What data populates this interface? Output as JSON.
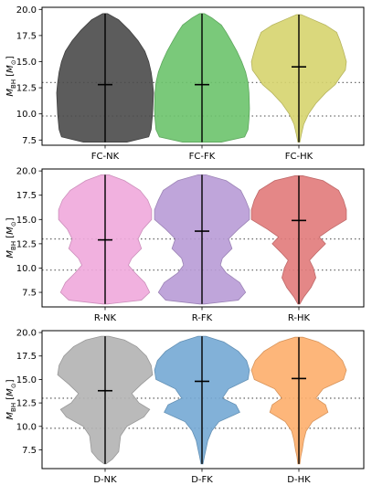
{
  "chart_data": [
    {
      "type": "violin",
      "ylabel": "M_BH [M_⊙]",
      "ylim": [
        7.0,
        20.2
      ],
      "yticks": [
        "7.5",
        "10.0",
        "12.5",
        "15.0",
        "17.5",
        "20.0"
      ],
      "reference_lines": [
        13.0,
        9.8
      ],
      "categories": [
        "FC-NK",
        "FC-FK",
        "FC-HK"
      ],
      "series": [
        {
          "color": "#4a4a4a",
          "min": 7.3,
          "max": 19.6,
          "median": 12.8,
          "density": [
            [
              7.3,
              0.45
            ],
            [
              7.8,
              0.9
            ],
            [
              8.5,
              0.95
            ],
            [
              9.0,
              0.96
            ],
            [
              10.0,
              0.98
            ],
            [
              11.0,
              0.99
            ],
            [
              12.0,
              1.0
            ],
            [
              13.0,
              0.98
            ],
            [
              14.0,
              0.95
            ],
            [
              15.0,
              0.9
            ],
            [
              16.0,
              0.82
            ],
            [
              17.0,
              0.68
            ],
            [
              18.0,
              0.5
            ],
            [
              19.0,
              0.28
            ],
            [
              19.6,
              0.05
            ]
          ]
        },
        {
          "color": "#6cc36c",
          "min": 7.3,
          "max": 19.6,
          "median": 12.8,
          "density": [
            [
              7.3,
              0.4
            ],
            [
              7.8,
              0.88
            ],
            [
              8.5,
              0.95
            ],
            [
              9.5,
              0.97
            ],
            [
              10.5,
              0.98
            ],
            [
              12.0,
              0.97
            ],
            [
              13.0,
              0.95
            ],
            [
              14.0,
              0.9
            ],
            [
              15.0,
              0.82
            ],
            [
              16.0,
              0.72
            ],
            [
              17.0,
              0.6
            ],
            [
              17.8,
              0.5
            ],
            [
              18.5,
              0.4
            ],
            [
              19.2,
              0.2
            ],
            [
              19.6,
              0.05
            ]
          ]
        },
        {
          "color": "#d6d46e",
          "min": 7.3,
          "max": 19.5,
          "median": 14.5,
          "density": [
            [
              7.3,
              0.02
            ],
            [
              8.0,
              0.05
            ],
            [
              9.0,
              0.1
            ],
            [
              10.0,
              0.2
            ],
            [
              11.0,
              0.35
            ],
            [
              12.0,
              0.55
            ],
            [
              12.8,
              0.75
            ],
            [
              13.5,
              0.85
            ],
            [
              14.2,
              0.96
            ],
            [
              15.0,
              0.98
            ],
            [
              16.0,
              0.92
            ],
            [
              17.0,
              0.85
            ],
            [
              17.8,
              0.78
            ],
            [
              18.5,
              0.55
            ],
            [
              19.2,
              0.2
            ],
            [
              19.5,
              0.05
            ]
          ]
        }
      ]
    },
    {
      "type": "violin",
      "ylabel": "M_BH [M_⊙]",
      "ylim": [
        6.0,
        20.2
      ],
      "yticks": [
        "7.5",
        "10.0",
        "12.5",
        "15.0",
        "17.5",
        "20.0"
      ],
      "reference_lines": [
        13.0,
        9.8
      ],
      "categories": [
        "R-NK",
        "R-FK",
        "R-HK"
      ],
      "series": [
        {
          "color": "#f0a8dc",
          "min": 6.3,
          "max": 19.6,
          "median": 12.9,
          "density": [
            [
              6.3,
              0.05
            ],
            [
              6.7,
              0.75
            ],
            [
              7.5,
              0.92
            ],
            [
              8.5,
              0.82
            ],
            [
              9.5,
              0.62
            ],
            [
              10.3,
              0.48
            ],
            [
              11.0,
              0.55
            ],
            [
              12.0,
              0.75
            ],
            [
              13.0,
              0.68
            ],
            [
              14.0,
              0.78
            ],
            [
              15.0,
              0.96
            ],
            [
              16.0,
              0.96
            ],
            [
              17.0,
              0.88
            ],
            [
              18.0,
              0.72
            ],
            [
              19.0,
              0.4
            ],
            [
              19.6,
              0.08
            ]
          ]
        },
        {
          "color": "#b89bd6",
          "min": 6.3,
          "max": 19.6,
          "median": 13.8,
          "density": [
            [
              6.3,
              0.05
            ],
            [
              6.7,
              0.75
            ],
            [
              7.5,
              0.9
            ],
            [
              8.5,
              0.78
            ],
            [
              9.5,
              0.5
            ],
            [
              10.3,
              0.38
            ],
            [
              11.0,
              0.42
            ],
            [
              12.0,
              0.62
            ],
            [
              13.0,
              0.55
            ],
            [
              14.0,
              0.75
            ],
            [
              15.0,
              0.98
            ],
            [
              16.0,
              0.98
            ],
            [
              17.0,
              0.9
            ],
            [
              18.0,
              0.8
            ],
            [
              19.0,
              0.5
            ],
            [
              19.6,
              0.08
            ]
          ]
        },
        {
          "color": "#e17a7a",
          "min": 6.3,
          "max": 19.5,
          "median": 14.9,
          "density": [
            [
              6.3,
              0.02
            ],
            [
              7.0,
              0.1
            ],
            [
              8.0,
              0.25
            ],
            [
              9.0,
              0.35
            ],
            [
              10.0,
              0.3
            ],
            [
              10.8,
              0.22
            ],
            [
              11.5,
              0.35
            ],
            [
              12.5,
              0.55
            ],
            [
              13.2,
              0.42
            ],
            [
              14.0,
              0.65
            ],
            [
              15.0,
              0.98
            ],
            [
              16.0,
              0.98
            ],
            [
              17.0,
              0.92
            ],
            [
              18.0,
              0.82
            ],
            [
              19.0,
              0.5
            ],
            [
              19.5,
              0.08
            ]
          ]
        }
      ]
    },
    {
      "type": "violin",
      "ylabel": "M_BH [M_⊙]",
      "ylim": [
        5.5,
        20.2
      ],
      "yticks": [
        "7.5",
        "10.0",
        "12.5",
        "15.0",
        "17.5",
        "20.0"
      ],
      "reference_lines": [
        13.0,
        9.8
      ],
      "categories": [
        "D-NK",
        "D-FK",
        "D-HK"
      ],
      "series": [
        {
          "color": "#b3b3b3",
          "min": 6.0,
          "max": 19.6,
          "median": 13.8,
          "density": [
            [
              6.0,
              0.02
            ],
            [
              6.5,
              0.15
            ],
            [
              7.3,
              0.28
            ],
            [
              8.2,
              0.3
            ],
            [
              9.0,
              0.32
            ],
            [
              10.0,
              0.45
            ],
            [
              11.0,
              0.8
            ],
            [
              11.8,
              0.92
            ],
            [
              12.5,
              0.7
            ],
            [
              13.5,
              0.55
            ],
            [
              14.5,
              0.75
            ],
            [
              15.5,
              0.98
            ],
            [
              16.5,
              0.95
            ],
            [
              17.5,
              0.85
            ],
            [
              18.5,
              0.65
            ],
            [
              19.2,
              0.4
            ],
            [
              19.6,
              0.08
            ]
          ]
        },
        {
          "color": "#74a9d4",
          "min": 6.0,
          "max": 19.6,
          "median": 14.8,
          "density": [
            [
              6.0,
              0.02
            ],
            [
              6.8,
              0.05
            ],
            [
              7.5,
              0.08
            ],
            [
              8.5,
              0.12
            ],
            [
              9.5,
              0.2
            ],
            [
              10.5,
              0.35
            ],
            [
              11.5,
              0.78
            ],
            [
              12.3,
              0.7
            ],
            [
              13.0,
              0.42
            ],
            [
              14.0,
              0.55
            ],
            [
              15.0,
              0.95
            ],
            [
              16.0,
              0.98
            ],
            [
              17.0,
              0.92
            ],
            [
              18.0,
              0.75
            ],
            [
              19.0,
              0.45
            ],
            [
              19.6,
              0.08
            ]
          ]
        },
        {
          "color": "#fdae6b",
          "min": 6.0,
          "max": 19.5,
          "median": 15.1,
          "density": [
            [
              6.0,
              0.02
            ],
            [
              6.8,
              0.04
            ],
            [
              7.5,
              0.07
            ],
            [
              8.5,
              0.1
            ],
            [
              9.5,
              0.15
            ],
            [
              10.5,
              0.28
            ],
            [
              11.5,
              0.6
            ],
            [
              12.3,
              0.55
            ],
            [
              13.0,
              0.35
            ],
            [
              14.0,
              0.5
            ],
            [
              15.0,
              0.92
            ],
            [
              16.0,
              0.98
            ],
            [
              17.0,
              0.9
            ],
            [
              18.0,
              0.72
            ],
            [
              19.0,
              0.4
            ],
            [
              19.5,
              0.08
            ]
          ]
        }
      ]
    }
  ]
}
